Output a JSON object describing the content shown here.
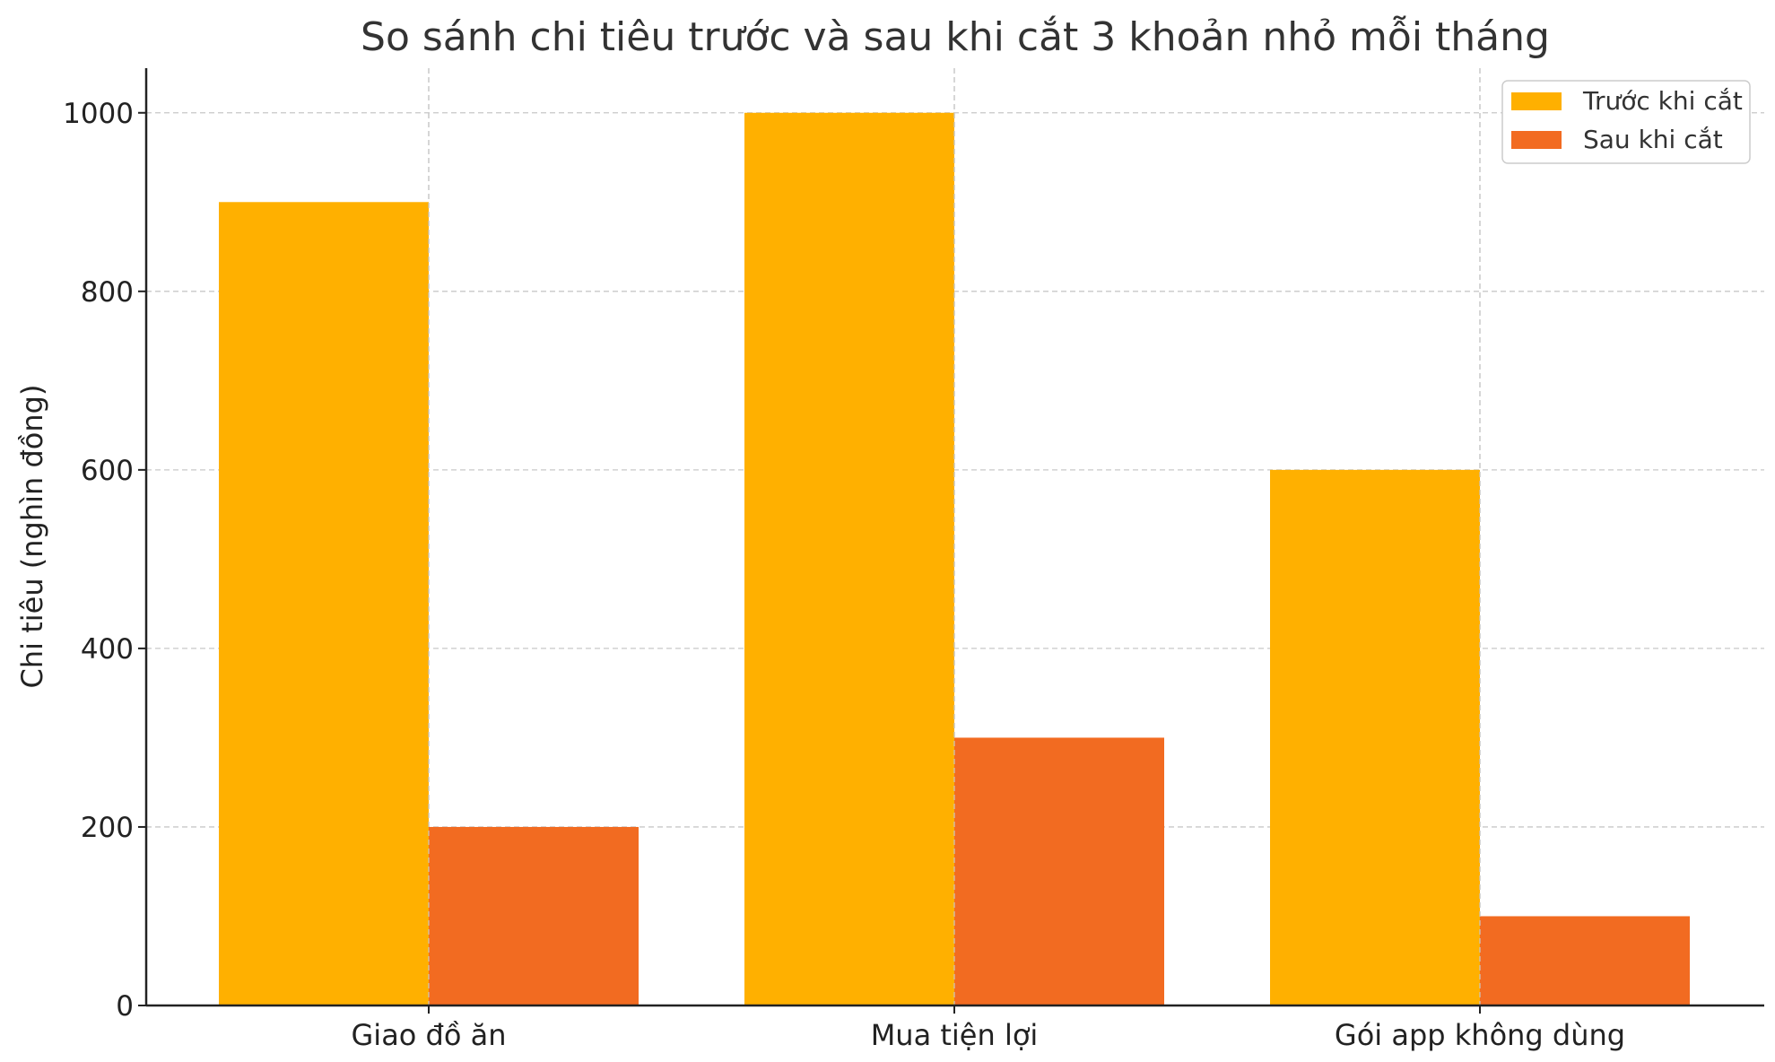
{
  "chart_data": {
    "type": "bar",
    "title": "So sánh chi tiêu trước và sau khi cắt 3 khoản nhỏ mỗi tháng",
    "xlabel": "",
    "ylabel": "Chi tiêu (nghìn đồng)",
    "categories": [
      "Giao đồ ăn",
      "Mua tiện lợi",
      "Gói app không dùng"
    ],
    "series": [
      {
        "name": "Trước khi cắt",
        "values": [
          900,
          1000,
          600
        ],
        "color": "#FFB000"
      },
      {
        "name": "Sau khi cắt",
        "values": [
          200,
          300,
          100
        ],
        "color": "#F26B21"
      }
    ],
    "ylim": [
      0,
      1050
    ],
    "yticks": [
      0,
      200,
      400,
      600,
      800,
      1000
    ],
    "grid": true,
    "legend_position": "top-right"
  }
}
